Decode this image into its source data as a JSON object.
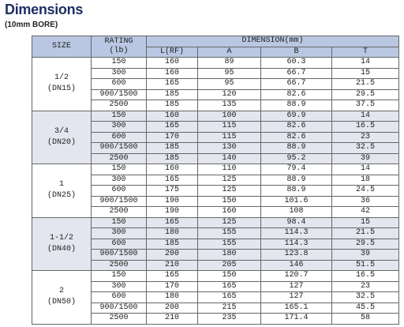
{
  "header": {
    "title": "Dimensions",
    "subtitle": "(10mm BORE)"
  },
  "table": {
    "columns": {
      "size": "SIZE",
      "rating": [
        "RATING",
        "(lb)"
      ],
      "dimension": "DIMENSION(mm)",
      "sub": [
        "L(RF)",
        "A",
        "B",
        "T"
      ]
    },
    "groups": [
      {
        "size": "1/2",
        "dn": "(DN15)",
        "rows": [
          [
            "150",
            "160",
            "89",
            "60.3",
            "14"
          ],
          [
            "300",
            "160",
            "95",
            "66.7",
            "15"
          ],
          [
            "600",
            "165",
            "95",
            "66.7",
            "21.5"
          ],
          [
            "900/1500",
            "185",
            "120",
            "82.6",
            "29.5"
          ],
          [
            "2500",
            "185",
            "135",
            "88.9",
            "37.5"
          ]
        ]
      },
      {
        "size": "3/4",
        "dn": "(DN20)",
        "rows": [
          [
            "150",
            "160",
            "100",
            "69.9",
            "14"
          ],
          [
            "300",
            "165",
            "115",
            "82.6",
            "16.5"
          ],
          [
            "600",
            "170",
            "115",
            "82.6",
            "23"
          ],
          [
            "900/1500",
            "185",
            "130",
            "88.9",
            "32.5"
          ],
          [
            "2500",
            "185",
            "140",
            "95.2",
            "39"
          ]
        ]
      },
      {
        "size": "1",
        "dn": "(DN25)",
        "rows": [
          [
            "150",
            "160",
            "110",
            "79.4",
            "14"
          ],
          [
            "300",
            "165",
            "125",
            "88.9",
            "18"
          ],
          [
            "600",
            "175",
            "125",
            "88.9",
            "24.5"
          ],
          [
            "900/1500",
            "190",
            "150",
            "101.6",
            "36"
          ],
          [
            "2500",
            "190",
            "160",
            "108",
            "42"
          ]
        ]
      },
      {
        "size": "1-1/2",
        "dn": "(DN40)",
        "rows": [
          [
            "150",
            "165",
            "125",
            "98.4",
            "15"
          ],
          [
            "300",
            "180",
            "155",
            "114.3",
            "21.5"
          ],
          [
            "600",
            "185",
            "155",
            "114.3",
            "29.5"
          ],
          [
            "900/1500",
            "200",
            "180",
            "123.8",
            "39"
          ],
          [
            "2500",
            "210",
            "205",
            "146",
            "51.5"
          ]
        ]
      },
      {
        "size": "2",
        "dn": "(DN50)",
        "rows": [
          [
            "150",
            "165",
            "150",
            "120.7",
            "16.5"
          ],
          [
            "300",
            "170",
            "165",
            "127",
            "23"
          ],
          [
            "600",
            "180",
            "165",
            "127",
            "32.5"
          ],
          [
            "900/1500",
            "200",
            "215",
            "165.1",
            "45.5"
          ],
          [
            "2500",
            "210",
            "235",
            "171.4",
            "58"
          ]
        ]
      }
    ]
  }
}
